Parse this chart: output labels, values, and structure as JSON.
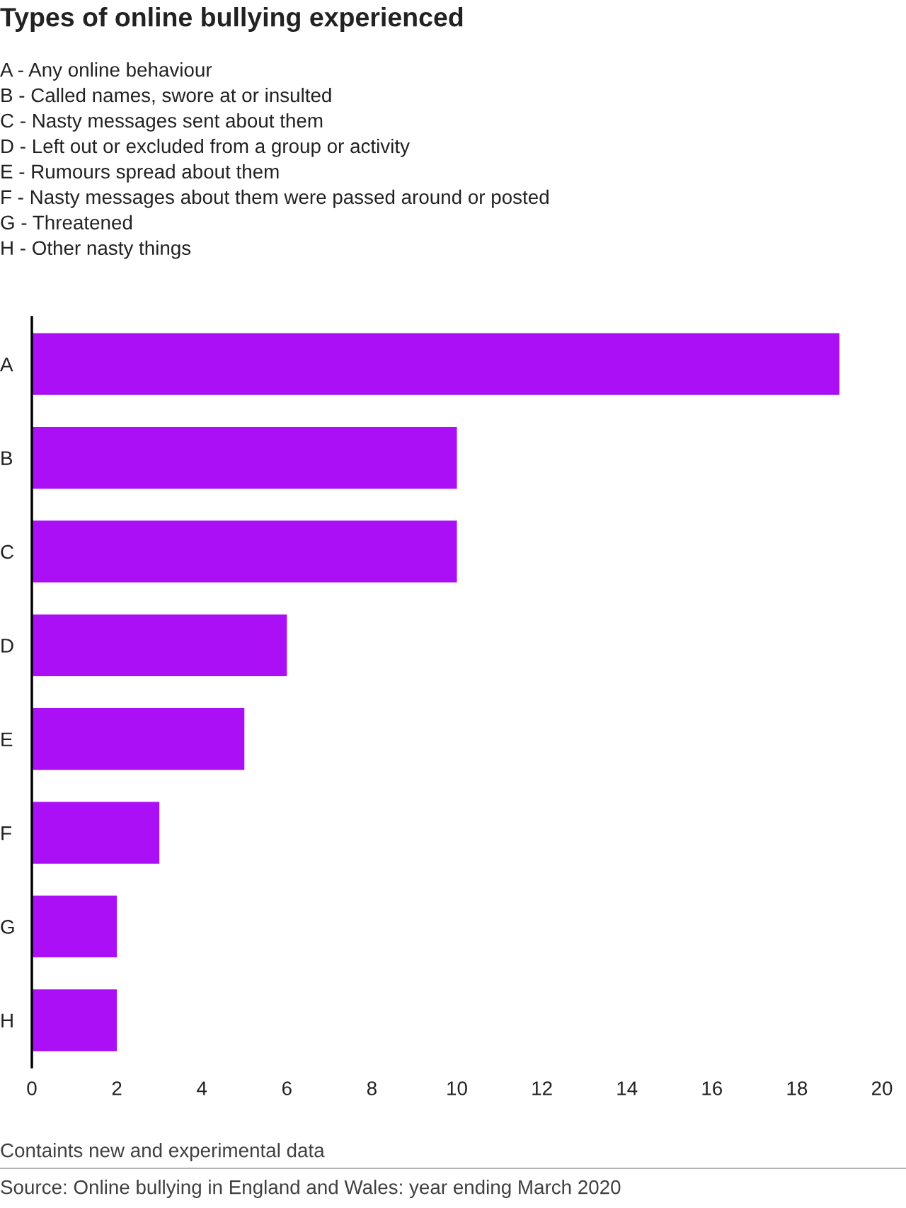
{
  "chart_data": {
    "type": "bar",
    "orientation": "horizontal",
    "title": "Types of online bullying experienced",
    "subtitle": "A - Any online behaviour\nB - Called names, swore at or insulted\nC - Nasty messages sent about them\nD - Left out or excluded from a group or activity\nE - Rumours spread about them\nF - Nasty messages about them were passed around or posted\nG - Threatened\nH - Other nasty things",
    "categories": [
      "A",
      "B",
      "C",
      "D",
      "E",
      "F",
      "G",
      "H"
    ],
    "values": [
      19,
      10,
      10,
      6,
      5,
      3,
      2,
      2
    ],
    "color": "#aa0ff5",
    "xlim": [
      0,
      20
    ],
    "xticks": [
      0,
      2,
      4,
      6,
      8,
      10,
      12,
      14,
      16,
      18,
      20
    ],
    "grid": false,
    "legend": false,
    "annotations": [
      "Containts new and experimental data",
      "Source: Online bullying in England and Wales: year ending March 2020"
    ]
  }
}
